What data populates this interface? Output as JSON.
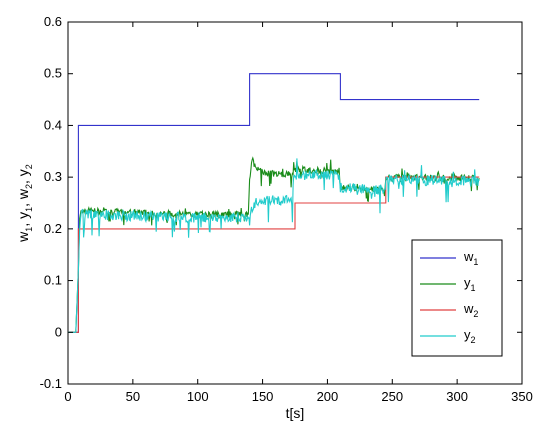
{
  "chart_data": {
    "type": "line",
    "title": "",
    "xlabel": "t[s]",
    "ylabel_parts": [
      "w",
      "1",
      ", y",
      "1",
      ", w",
      "2",
      ", y",
      "2"
    ],
    "xlim": [
      0,
      350
    ],
    "ylim": [
      -0.1,
      0.6
    ],
    "xticks": [
      0,
      50,
      100,
      150,
      200,
      250,
      300,
      350
    ],
    "yticks": [
      -0.1,
      0,
      0.1,
      0.2,
      0.3,
      0.4,
      0.5,
      0.6
    ],
    "xtick_labels": [
      "0",
      "50",
      "100",
      "150",
      "200",
      "250",
      "300",
      "350"
    ],
    "ytick_labels": [
      "-0.1",
      "0",
      "0.1",
      "0.2",
      "0.3",
      "0.4",
      "0.5",
      "0.6"
    ],
    "grid": false,
    "legend_position": "bottom-right",
    "series": [
      {
        "name": "w",
        "sub": "1",
        "color": "#3333cc",
        "x": [
          0,
          8,
          8,
          140,
          140,
          210,
          210,
          317
        ],
        "y": [
          0,
          0,
          0.4,
          0.4,
          0.5,
          0.5,
          0.45,
          0.45
        ]
      },
      {
        "name": "y",
        "sub": "1",
        "color": "#1a8c1a",
        "noise": 0.006,
        "x": [
          0,
          6,
          8,
          9,
          10,
          50,
          100,
          139,
          140,
          142,
          150,
          173,
          174,
          209,
          210,
          244,
          245,
          317
        ],
        "y": [
          0,
          0,
          0.12,
          0.22,
          0.235,
          0.232,
          0.228,
          0.228,
          0.3,
          0.33,
          0.308,
          0.305,
          0.315,
          0.312,
          0.28,
          0.275,
          0.3,
          0.298
        ]
      },
      {
        "name": "w",
        "sub": "2",
        "color": "#e04040",
        "x": [
          0,
          8,
          8,
          175,
          175,
          245,
          245,
          317
        ],
        "y": [
          0,
          0,
          0.2,
          0.2,
          0.25,
          0.25,
          0.3,
          0.3
        ]
      },
      {
        "name": "y",
        "sub": "2",
        "color": "#22cccc",
        "noise": 0.01,
        "x": [
          0,
          6,
          8,
          9,
          10,
          50,
          100,
          139,
          140,
          144,
          150,
          173,
          174,
          209,
          210,
          244,
          245,
          317
        ],
        "y": [
          0,
          0,
          0.12,
          0.2,
          0.228,
          0.225,
          0.222,
          0.222,
          0.23,
          0.25,
          0.255,
          0.255,
          0.305,
          0.305,
          0.28,
          0.275,
          0.295,
          0.293
        ]
      }
    ]
  }
}
